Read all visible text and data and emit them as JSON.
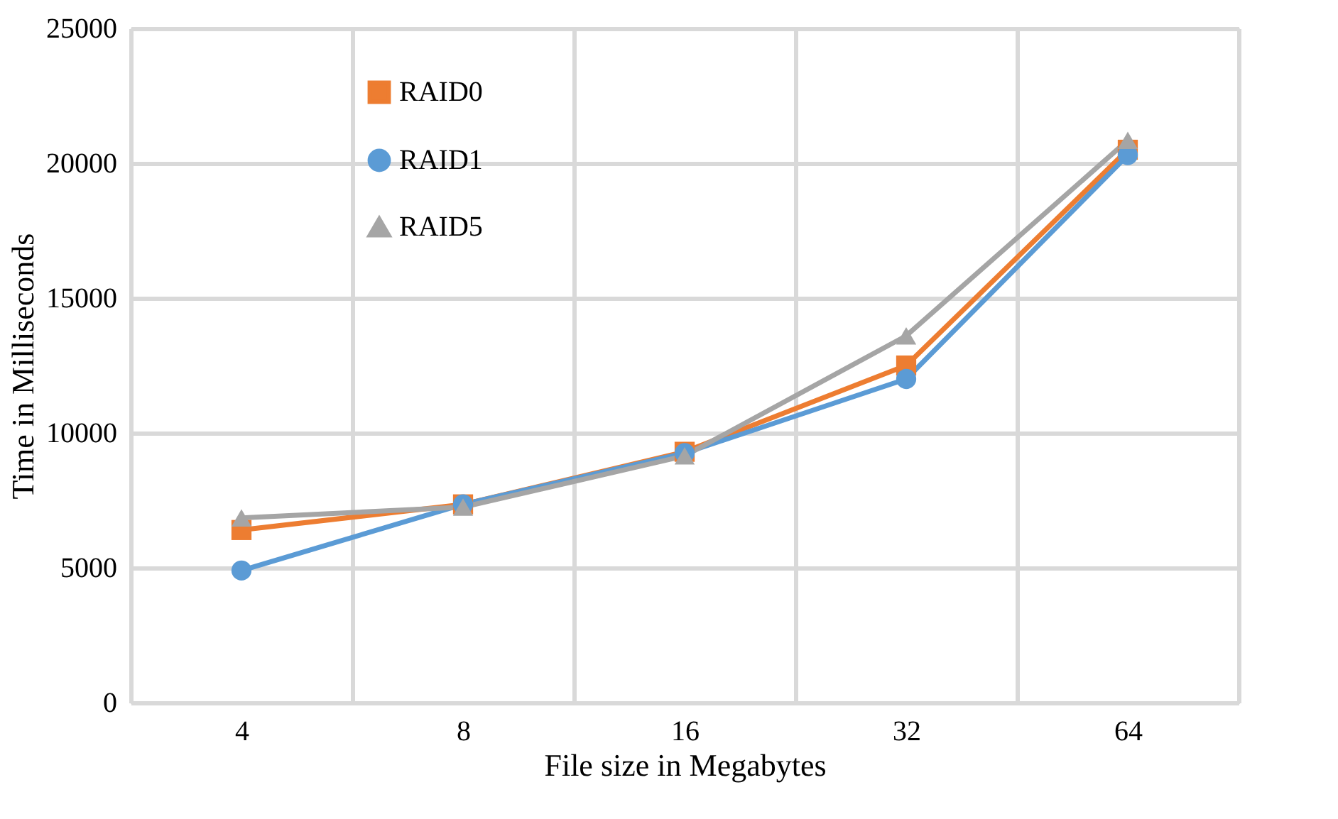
{
  "chart_data": {
    "type": "line",
    "xlabel": "File size in Megabytes",
    "ylabel": "Time in Milliseconds",
    "categories": [
      "4",
      "8",
      "16",
      "32",
      "64"
    ],
    "series": [
      {
        "name": "RAID0",
        "color": "#ed7d31",
        "marker": "square",
        "values": [
          6400,
          7350,
          9300,
          12500,
          20500
        ]
      },
      {
        "name": "RAID1",
        "color": "#5b9bd5",
        "marker": "circle",
        "values": [
          4900,
          7350,
          9250,
          12000,
          20300
        ]
      },
      {
        "name": "RAID5",
        "color": "#a5a5a5",
        "marker": "triangle",
        "values": [
          6850,
          7250,
          9150,
          13600,
          20850
        ]
      }
    ],
    "ylim": [
      0,
      25000
    ],
    "yticks": [
      0,
      5000,
      10000,
      15000,
      20000,
      25000
    ],
    "grid": true,
    "legend": "top left"
  }
}
